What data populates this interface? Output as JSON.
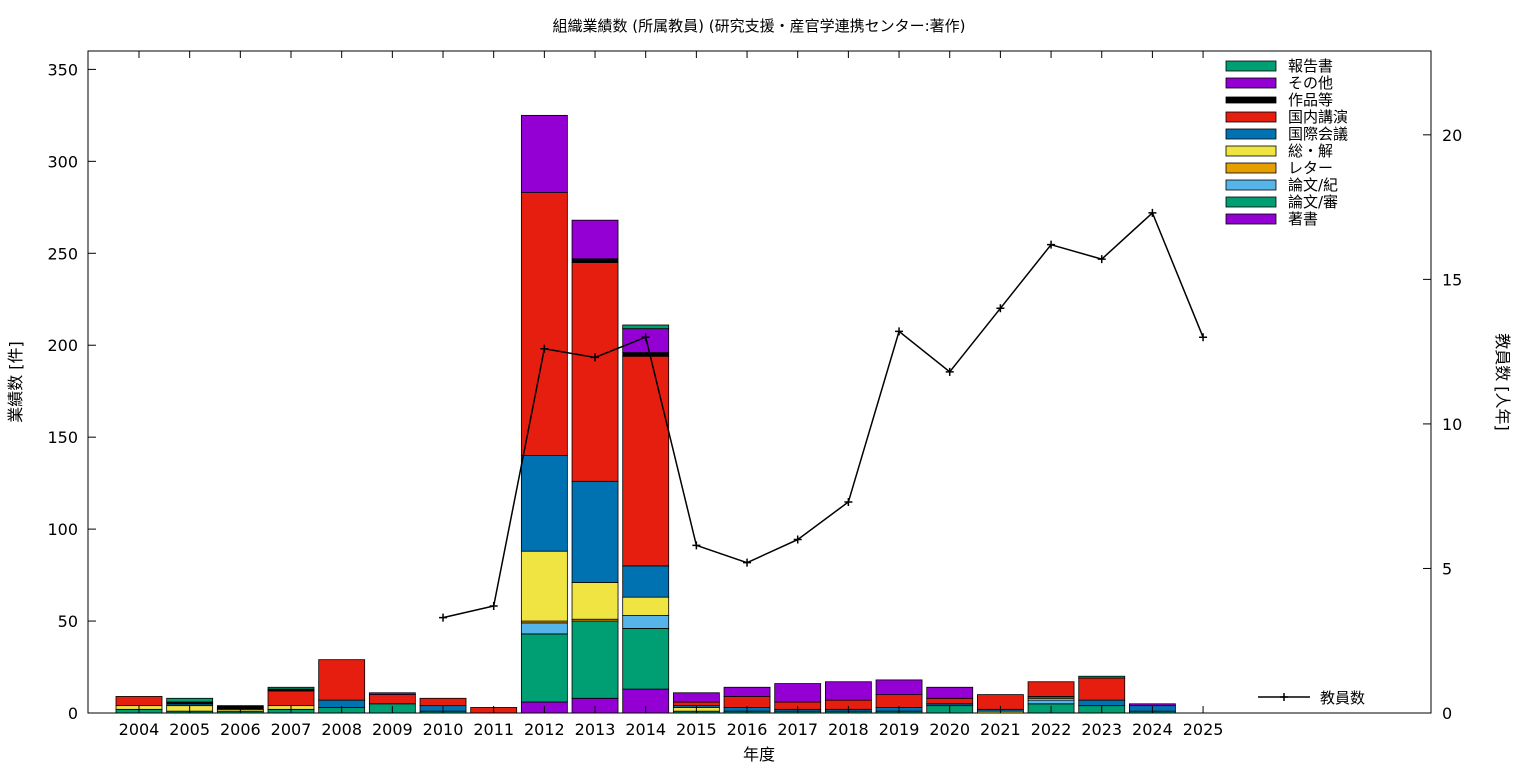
{
  "chart_data": {
    "type": "bar",
    "title": "組織業績数 (所属教員) (研究支援・産官学連携センター:著作)",
    "xlabel": "年度",
    "ylabel": "業績数 [件]",
    "y2label": "教員数 [人年]",
    "ylim": [
      0,
      360
    ],
    "y2lim": [
      0,
      22.9
    ],
    "yticks": [
      0,
      50,
      100,
      150,
      200,
      250,
      300,
      350
    ],
    "y2ticks": [
      0,
      5,
      10,
      15,
      20
    ],
    "categories": [
      "2004",
      "2005",
      "2006",
      "2007",
      "2008",
      "2009",
      "2010",
      "2011",
      "2012",
      "2013",
      "2014",
      "2015",
      "2016",
      "2017",
      "2018",
      "2019",
      "2020",
      "2021",
      "2022",
      "2023",
      "2024",
      "2025"
    ],
    "legend_position": "top-right",
    "series": [
      {
        "name": "著書",
        "color": "#9400d3",
        "values": [
          0,
          0,
          0,
          0,
          0,
          0,
          0,
          0,
          6,
          8,
          13,
          0,
          0,
          0,
          0,
          0,
          0,
          0,
          0,
          0,
          0,
          0
        ]
      },
      {
        "name": "論文/審",
        "color": "#009e73",
        "values": [
          2,
          1,
          1,
          2,
          3,
          5,
          1,
          0,
          37,
          42,
          33,
          1,
          1,
          1,
          1,
          1,
          4,
          0,
          5,
          4,
          1,
          0
        ]
      },
      {
        "name": "論文/紀",
        "color": "#56b4e9",
        "values": [
          0,
          0,
          0,
          0,
          0,
          0,
          0,
          0,
          6,
          0,
          7,
          0,
          0,
          0,
          0,
          0,
          0,
          0,
          2,
          0,
          0,
          0
        ]
      },
      {
        "name": "レター",
        "color": "#e69f00",
        "values": [
          0,
          0,
          0,
          0,
          0,
          0,
          0,
          0,
          1,
          1,
          0,
          0,
          0,
          0,
          0,
          0,
          0,
          0,
          0,
          0,
          0,
          0
        ]
      },
      {
        "name": "総・解",
        "color": "#f0e442",
        "values": [
          2,
          3,
          1,
          2,
          0,
          0,
          0,
          0,
          38,
          20,
          10,
          2,
          0,
          0,
          0,
          0,
          0,
          1,
          1,
          0,
          0,
          0
        ]
      },
      {
        "name": "国際会議",
        "color": "#0072b2",
        "values": [
          0,
          1,
          0,
          0,
          4,
          0,
          3,
          0,
          52,
          55,
          17,
          1,
          2,
          1,
          1,
          2,
          1,
          1,
          1,
          3,
          3,
          0
        ]
      },
      {
        "name": "国内講演",
        "color": "#e51e10",
        "values": [
          5,
          0,
          0,
          8,
          22,
          5,
          4,
          3,
          143,
          119,
          114,
          2,
          6,
          4,
          5,
          7,
          3,
          8,
          8,
          12,
          0,
          0
        ]
      },
      {
        "name": "作品等",
        "color": "#000000",
        "values": [
          0,
          1,
          2,
          1,
          0,
          0,
          0,
          0,
          0,
          2,
          2,
          0,
          0,
          0,
          0,
          0,
          0,
          0,
          0,
          0,
          0,
          0
        ]
      },
      {
        "name": "その他",
        "color": "#9400d3",
        "values": [
          0,
          0,
          0,
          0,
          0,
          1,
          0,
          0,
          42,
          21,
          13,
          5,
          5,
          10,
          10,
          8,
          6,
          0,
          0,
          0,
          1,
          0
        ]
      },
      {
        "name": "報告書",
        "color": "#009e73",
        "values": [
          0,
          2,
          0,
          1,
          0,
          0,
          0,
          0,
          0,
          0,
          2,
          0,
          0,
          0,
          0,
          0,
          0,
          0,
          0,
          1,
          0,
          0
        ]
      }
    ],
    "line_series": {
      "name": "教員数",
      "color": "#000000",
      "axis": "y2",
      "x": [
        "2010",
        "2011",
        "2012",
        "2013",
        "2014",
        "2015",
        "2016",
        "2017",
        "2018",
        "2019",
        "2020",
        "2021",
        "2022",
        "2023",
        "2024",
        "2025"
      ],
      "values": [
        3.3,
        3.7,
        12.6,
        12.3,
        13.0,
        5.8,
        5.2,
        6.0,
        7.3,
        13.2,
        11.8,
        14.0,
        16.2,
        15.7,
        17.3,
        13.0
      ]
    }
  }
}
